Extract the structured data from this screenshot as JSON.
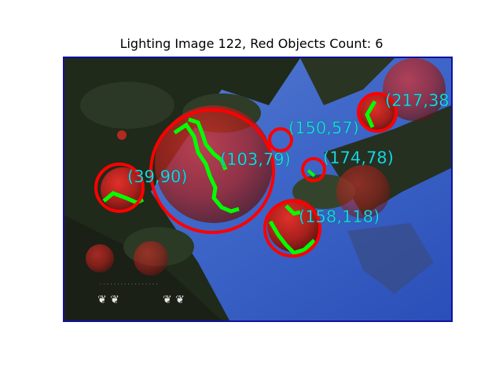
{
  "figure": {
    "title": "Lighting Image 122, Red Objects Count: 6",
    "image": {
      "detections": [
        {
          "label": "(39,90)"
        },
        {
          "label": "(103,79)"
        },
        {
          "label": "(150,57)"
        },
        {
          "label": "(174,78)"
        },
        {
          "label": "(158,118)"
        },
        {
          "label": "(217,38"
        }
      ]
    }
  },
  "colors": {
    "circle": "#ff0000",
    "contour": "#00ff00",
    "label": "#1ee0ee",
    "frame": "#1010a0"
  }
}
